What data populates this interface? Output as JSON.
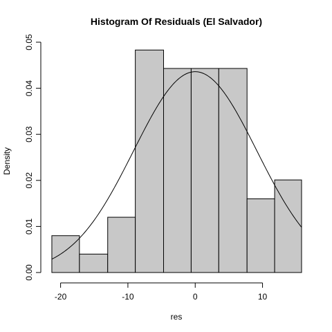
{
  "chart_data": {
    "type": "bar",
    "title": "Histogram Of Residuals (El Salvador)",
    "xlabel": "res",
    "ylabel": "Density",
    "xlim": [
      -21.5,
      15.8
    ],
    "ylim": [
      0,
      0.05
    ],
    "x_ticks": [
      -20,
      -10,
      0,
      10
    ],
    "x_tick_labels": [
      "-20",
      "-10",
      "0",
      "10"
    ],
    "y_ticks": [
      0,
      0.01,
      0.02,
      0.03,
      0.04,
      0.05
    ],
    "y_tick_labels": [
      "0.00",
      "0.01",
      "0.02",
      "0.03",
      "0.04",
      "0.05"
    ],
    "bins": [
      {
        "start": -21.3,
        "end": -17.2,
        "density": 0.008
      },
      {
        "start": -17.2,
        "end": -13.0,
        "density": 0.004
      },
      {
        "start": -13.0,
        "end": -8.9,
        "density": 0.012
      },
      {
        "start": -8.9,
        "end": -4.7,
        "density": 0.0483
      },
      {
        "start": -4.7,
        "end": -0.6,
        "density": 0.0443
      },
      {
        "start": -0.6,
        "end": 3.5,
        "density": 0.0443
      },
      {
        "start": 3.5,
        "end": 7.7,
        "density": 0.0443
      },
      {
        "start": 7.7,
        "end": 11.8,
        "density": 0.016
      },
      {
        "start": 11.8,
        "end": 15.8,
        "density": 0.0201
      }
    ],
    "normal_curve": {
      "mean": 0,
      "sd": 9.15
    },
    "grid": false,
    "bar_color": "#c8c8c8"
  }
}
